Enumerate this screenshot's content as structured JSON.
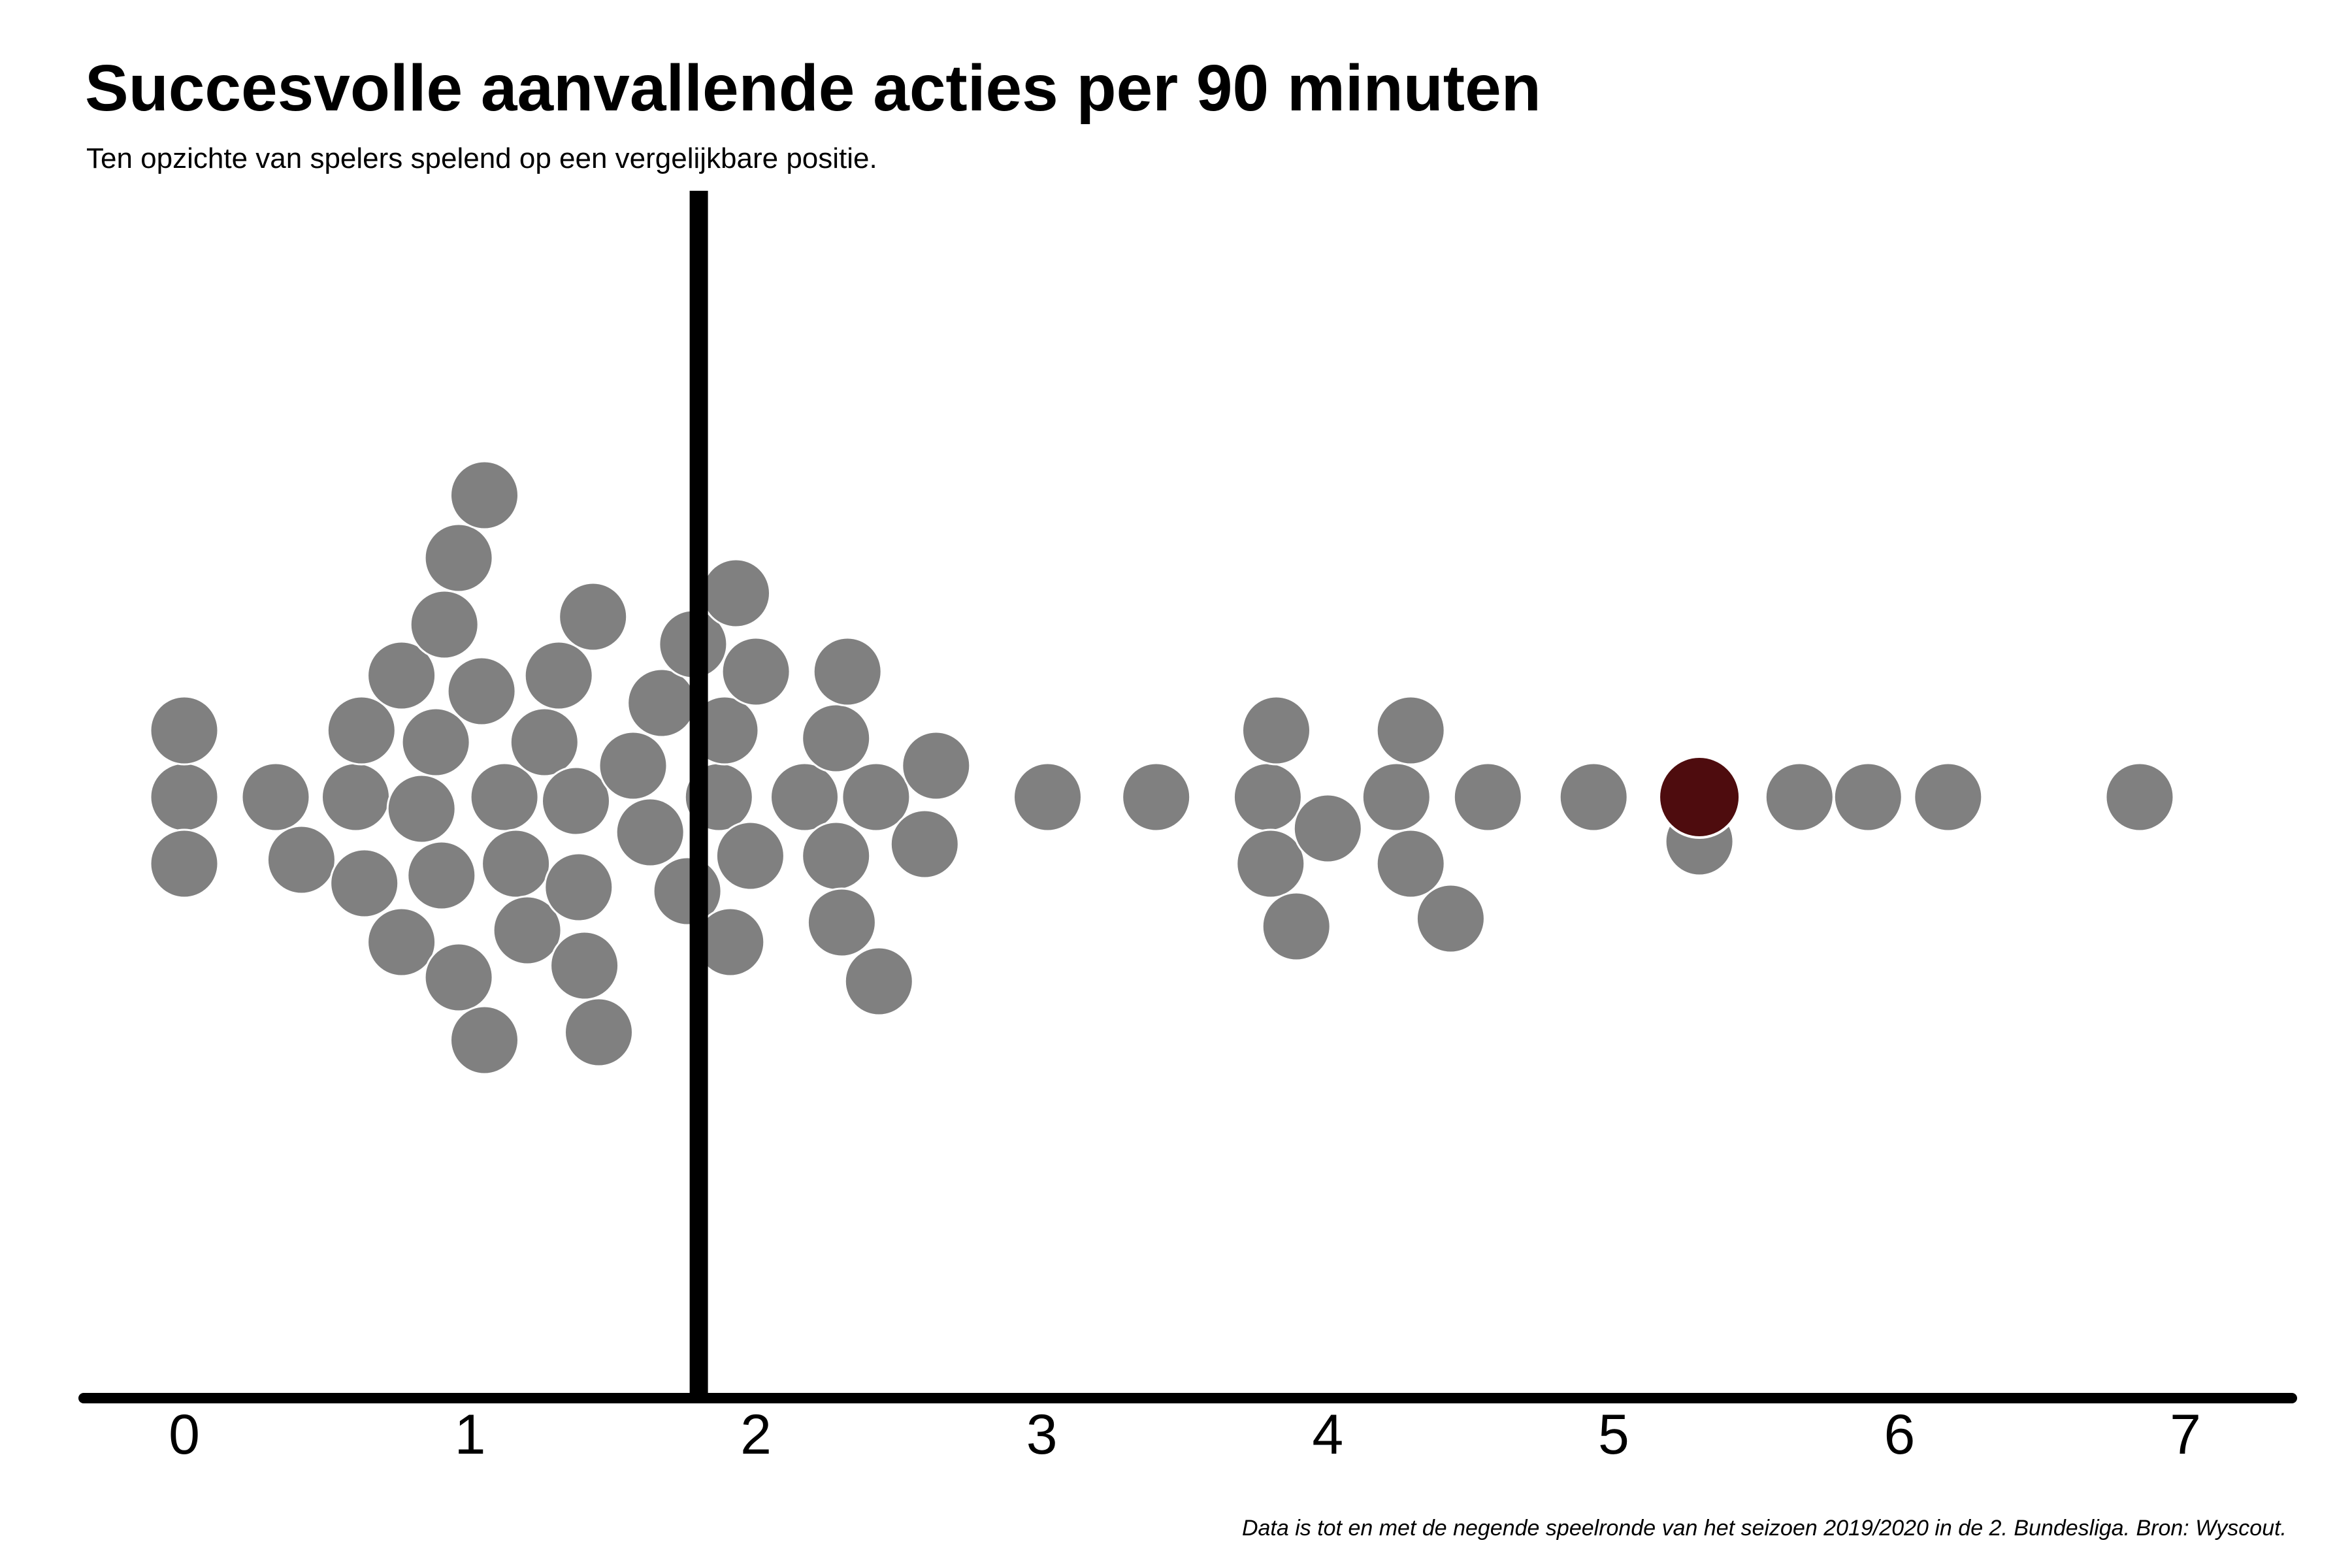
{
  "title": "Succesvolle aanvallende acties per 90 minuten",
  "subtitle": "Ten opzichte van spelers spelend op een vergelijkbare positie.",
  "source": "Data is tot en met de negende speelronde van het seizoen 2019/2020 in de 2. Bundesliga. Bron: Wyscout.",
  "colors": {
    "point": "#808080",
    "point_stroke": "#ffffff",
    "highlight": "#4e0c0e",
    "axis": "#000000",
    "reference_line": "#000000"
  },
  "chart_data": {
    "type": "scatter",
    "subtype": "beeswarm",
    "xlim": [
      -0.35,
      7.35
    ],
    "ticks": [
      0,
      1,
      2,
      3,
      4,
      5,
      6,
      7
    ],
    "tick_labels": [
      "0",
      "1",
      "2",
      "3",
      "4",
      "5",
      "6",
      "7"
    ],
    "reference_line_x": 1.8,
    "highlight_x": 5.3,
    "values": [
      0.0,
      0.0,
      0.0,
      0.32,
      0.41,
      0.6,
      0.62,
      0.63,
      0.76,
      0.76,
      0.83,
      0.88,
      0.9,
      0.91,
      0.96,
      0.96,
      1.04,
      1.05,
      1.05,
      1.12,
      1.16,
      1.2,
      1.26,
      1.31,
      1.37,
      1.38,
      1.4,
      1.43,
      1.45,
      1.57,
      1.63,
      1.67,
      1.76,
      1.78,
      1.87,
      1.89,
      1.91,
      1.93,
      1.98,
      2.0,
      2.17,
      2.28,
      2.28,
      2.3,
      2.32,
      2.42,
      2.43,
      2.59,
      2.63,
      3.02,
      3.4,
      3.79,
      3.8,
      3.82,
      3.89,
      4.0,
      4.24,
      4.29,
      4.29,
      4.43,
      4.56,
      4.93,
      5.3,
      5.65,
      5.89,
      6.17,
      6.84
    ]
  }
}
